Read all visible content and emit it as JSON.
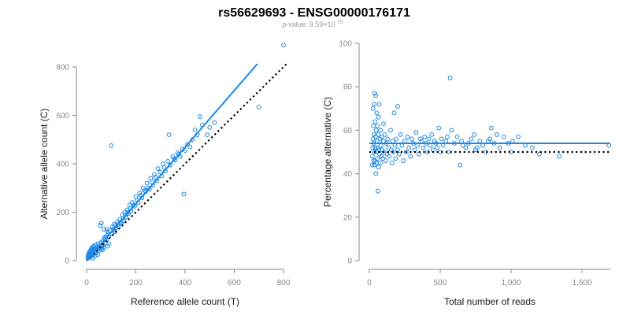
{
  "figure": {
    "title": "rs56629693 - ENSG00000176171",
    "subtitle_prefix": "p-value: 9.59×10",
    "subtitle_exponent": "-75"
  },
  "colors": {
    "points": "#1e88e5",
    "fit": "#1e88e5",
    "reference": "#000000",
    "axis": "#888888"
  },
  "chart_data": [
    {
      "type": "scatter",
      "xlabel": "Reference allele count (T)",
      "ylabel": "Alternative allele count (C)",
      "xlim": [
        0,
        800
      ],
      "ylim": [
        0,
        800
      ],
      "xticks": [
        0,
        200,
        400,
        600,
        800
      ],
      "yticks": [
        0,
        200,
        400,
        600,
        800
      ],
      "xtick_labels": [
        "0",
        "200",
        "400",
        "600",
        "800"
      ],
      "ytick_labels": [
        "0",
        "200",
        "400",
        "600",
        "800"
      ],
      "fit_line": {
        "style": "solid",
        "x": [
          0,
          760
        ],
        "y": [
          0,
          890
        ]
      },
      "reference_line": {
        "style": "dotted",
        "x": [
          0,
          890
        ],
        "y": [
          0,
          890
        ]
      },
      "points": [
        [
          5,
          10
        ],
        [
          6,
          18
        ],
        [
          7,
          25
        ],
        [
          8,
          12
        ],
        [
          9,
          30
        ],
        [
          10,
          22
        ],
        [
          11,
          15
        ],
        [
          12,
          35
        ],
        [
          13,
          20
        ],
        [
          14,
          40
        ],
        [
          15,
          28
        ],
        [
          16,
          18
        ],
        [
          17,
          45
        ],
        [
          18,
          33
        ],
        [
          19,
          25
        ],
        [
          20,
          50
        ],
        [
          21,
          38
        ],
        [
          22,
          30
        ],
        [
          23,
          55
        ],
        [
          24,
          42
        ],
        [
          25,
          20
        ],
        [
          26,
          48
        ],
        [
          27,
          35
        ],
        [
          28,
          60
        ],
        [
          29,
          45
        ],
        [
          30,
          30
        ],
        [
          32,
          52
        ],
        [
          34,
          40
        ],
        [
          36,
          65
        ],
        [
          38,
          50
        ],
        [
          40,
          35
        ],
        [
          42,
          58
        ],
        [
          44,
          45
        ],
        [
          46,
          70
        ],
        [
          48,
          55
        ],
        [
          50,
          40
        ],
        [
          52,
          62
        ],
        [
          55,
          48
        ],
        [
          58,
          75
        ],
        [
          60,
          60
        ],
        [
          62,
          50
        ],
        [
          65,
          80
        ],
        [
          68,
          65
        ],
        [
          70,
          55
        ],
        [
          72,
          95
        ],
        [
          75,
          90
        ],
        [
          78,
          100
        ],
        [
          80,
          85
        ],
        [
          82,
          130
        ],
        [
          85,
          120
        ],
        [
          88,
          110
        ],
        [
          90,
          100
        ],
        [
          95,
          125
        ],
        [
          100,
          475
        ],
        [
          102,
          110
        ],
        [
          105,
          140
        ],
        [
          108,
          130
        ],
        [
          110,
          125
        ],
        [
          112,
          150
        ],
        [
          115,
          120
        ],
        [
          118,
          145
        ],
        [
          120,
          135
        ],
        [
          125,
          160
        ],
        [
          128,
          150
        ],
        [
          130,
          140
        ],
        [
          135,
          170
        ],
        [
          138,
          160
        ],
        [
          140,
          155
        ],
        [
          145,
          190
        ],
        [
          148,
          175
        ],
        [
          150,
          165
        ],
        [
          155,
          200
        ],
        [
          158,
          190
        ],
        [
          160,
          180
        ],
        [
          165,
          210
        ],
        [
          168,
          200
        ],
        [
          170,
          195
        ],
        [
          175,
          230
        ],
        [
          178,
          215
        ],
        [
          180,
          205
        ],
        [
          185,
          240
        ],
        [
          190,
          230
        ],
        [
          195,
          225
        ],
        [
          200,
          265
        ],
        [
          205,
          250
        ],
        [
          210,
          240
        ],
        [
          215,
          280
        ],
        [
          220,
          270
        ],
        [
          225,
          260
        ],
        [
          230,
          300
        ],
        [
          235,
          290
        ],
        [
          240,
          285
        ],
        [
          245,
          320
        ],
        [
          250,
          300
        ],
        [
          255,
          295
        ],
        [
          260,
          340
        ],
        [
          265,
          325
        ],
        [
          270,
          310
        ],
        [
          275,
          355
        ],
        [
          280,
          345
        ],
        [
          285,
          330
        ],
        [
          290,
          380
        ],
        [
          300,
          365
        ],
        [
          305,
          350
        ],
        [
          310,
          400
        ],
        [
          315,
          385
        ],
        [
          320,
          370
        ],
        [
          330,
          410
        ],
        [
          335,
          520
        ],
        [
          340,
          395
        ],
        [
          350,
          430
        ],
        [
          355,
          420
        ],
        [
          360,
          415
        ],
        [
          370,
          445
        ],
        [
          375,
          440
        ],
        [
          380,
          430
        ],
        [
          390,
          460
        ],
        [
          395,
          275
        ],
        [
          400,
          455
        ],
        [
          410,
          480
        ],
        [
          420,
          470
        ],
        [
          430,
          500
        ],
        [
          440,
          540
        ],
        [
          450,
          520
        ],
        [
          460,
          595
        ],
        [
          470,
          560
        ],
        [
          490,
          520
        ],
        [
          500,
          550
        ],
        [
          520,
          570
        ],
        [
          700,
          635
        ],
        [
          800,
          890
        ],
        [
          60,
          155
        ],
        [
          55,
          145
        ],
        [
          70,
          130
        ],
        [
          90,
          70
        ],
        [
          85,
          60
        ],
        [
          65,
          45
        ],
        [
          45,
          25
        ],
        [
          35,
          20
        ],
        [
          25,
          10
        ]
      ]
    },
    {
      "type": "scatter",
      "xlabel": "Total number of reads",
      "ylabel": "Percentage alternative (C)",
      "xlim": [
        0,
        1700
      ],
      "ylim": [
        0,
        100
      ],
      "xticks": [
        0,
        500,
        1000,
        1500
      ],
      "yticks": [
        0,
        20,
        40,
        60,
        80,
        100
      ],
      "xtick_labels": [
        "0",
        "500",
        "1,000",
        "1,500"
      ],
      "ytick_labels": [
        "0",
        "20",
        "40",
        "60",
        "80",
        "100"
      ],
      "fit_line": {
        "style": "solid",
        "x": [
          0,
          1700
        ],
        "y": [
          54,
          54
        ]
      },
      "reference_line": {
        "style": "dotted",
        "x": [
          0,
          1700
        ],
        "y": [
          50,
          50
        ]
      },
      "points": [
        [
          20,
          44
        ],
        [
          22,
          48
        ],
        [
          24,
          52
        ],
        [
          25,
          56
        ],
        [
          26,
          70
        ],
        [
          28,
          62
        ],
        [
          30,
          46
        ],
        [
          30,
          54
        ],
        [
          32,
          58
        ],
        [
          34,
          72
        ],
        [
          35,
          50
        ],
        [
          36,
          44
        ],
        [
          38,
          77
        ],
        [
          40,
          64
        ],
        [
          40,
          46
        ],
        [
          42,
          52
        ],
        [
          44,
          57
        ],
        [
          45,
          76
        ],
        [
          46,
          40
        ],
        [
          48,
          60
        ],
        [
          50,
          50
        ],
        [
          50,
          45
        ],
        [
          52,
          68
        ],
        [
          55,
          55
        ],
        [
          56,
          47
        ],
        [
          58,
          62
        ],
        [
          60,
          52
        ],
        [
          60,
          32
        ],
        [
          62,
          58
        ],
        [
          65,
          66
        ],
        [
          66,
          43
        ],
        [
          68,
          51
        ],
        [
          70,
          72
        ],
        [
          72,
          49
        ],
        [
          75,
          56
        ],
        [
          78,
          45
        ],
        [
          80,
          60
        ],
        [
          82,
          53
        ],
        [
          85,
          48
        ],
        [
          88,
          57
        ],
        [
          90,
          51
        ],
        [
          95,
          47
        ],
        [
          100,
          55
        ],
        [
          100,
          63
        ],
        [
          105,
          50
        ],
        [
          110,
          58
        ],
        [
          115,
          46
        ],
        [
          120,
          54
        ],
        [
          125,
          49
        ],
        [
          130,
          56
        ],
        [
          135,
          52
        ],
        [
          140,
          48
        ],
        [
          150,
          60
        ],
        [
          155,
          51
        ],
        [
          160,
          45
        ],
        [
          165,
          55
        ],
        [
          170,
          50
        ],
        [
          175,
          68
        ],
        [
          180,
          53
        ],
        [
          185,
          47
        ],
        [
          190,
          56
        ],
        [
          200,
          71
        ],
        [
          200,
          51
        ],
        [
          210,
          49
        ],
        [
          220,
          58
        ],
        [
          230,
          53
        ],
        [
          240,
          46
        ],
        [
          250,
          55
        ],
        [
          260,
          50
        ],
        [
          270,
          57
        ],
        [
          280,
          52
        ],
        [
          290,
          48
        ],
        [
          300,
          56
        ],
        [
          310,
          54
        ],
        [
          320,
          51
        ],
        [
          330,
          59
        ],
        [
          340,
          53
        ],
        [
          350,
          49
        ],
        [
          360,
          56
        ],
        [
          370,
          55
        ],
        [
          380,
          52
        ],
        [
          390,
          57
        ],
        [
          400,
          54
        ],
        [
          410,
          50
        ],
        [
          420,
          56
        ],
        [
          430,
          53
        ],
        [
          440,
          58
        ],
        [
          450,
          51
        ],
        [
          460,
          55
        ],
        [
          470,
          54
        ],
        [
          480,
          52
        ],
        [
          490,
          61
        ],
        [
          500,
          50
        ],
        [
          510,
          56
        ],
        [
          520,
          53
        ],
        [
          540,
          55
        ],
        [
          560,
          50
        ],
        [
          570,
          84
        ],
        [
          580,
          60
        ],
        [
          600,
          54
        ],
        [
          620,
          57
        ],
        [
          640,
          44
        ],
        [
          660,
          53
        ],
        [
          680,
          52
        ],
        [
          700,
          54
        ],
        [
          720,
          56
        ],
        [
          740,
          58
        ],
        [
          760,
          52
        ],
        [
          780,
          55
        ],
        [
          800,
          53
        ],
        [
          820,
          50
        ],
        [
          840,
          55
        ],
        [
          860,
          61
        ],
        [
          880,
          54
        ],
        [
          920,
          52
        ],
        [
          950,
          57
        ],
        [
          980,
          54
        ],
        [
          1010,
          55
        ],
        [
          1050,
          57
        ],
        [
          1100,
          53
        ],
        [
          1340,
          48
        ],
        [
          1690,
          53
        ],
        [
          1200,
          49
        ],
        [
          1150,
          52
        ],
        [
          1000,
          50
        ],
        [
          900,
          58
        ],
        [
          850,
          56
        ],
        [
          750,
          51
        ],
        [
          650,
          55
        ],
        [
          550,
          57
        ]
      ]
    }
  ]
}
